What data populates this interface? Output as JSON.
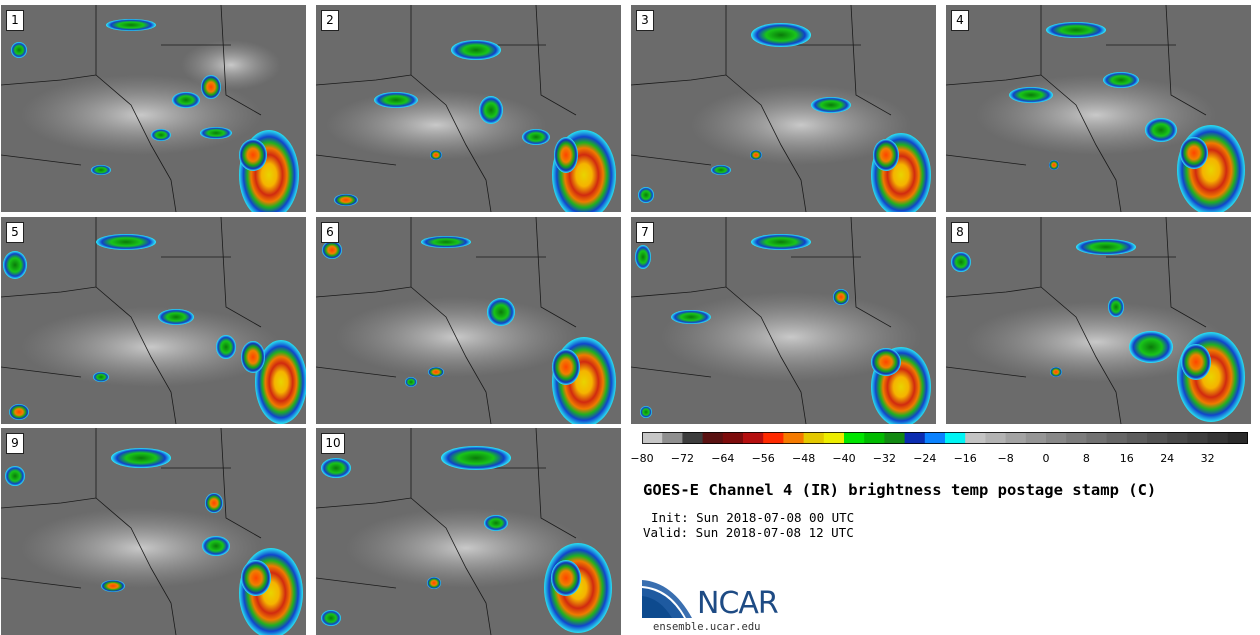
{
  "panels": [
    {
      "label": "1"
    },
    {
      "label": "2"
    },
    {
      "label": "3"
    },
    {
      "label": "4"
    },
    {
      "label": "5"
    },
    {
      "label": "6"
    },
    {
      "label": "7"
    },
    {
      "label": "8"
    },
    {
      "label": "9"
    },
    {
      "label": "10"
    }
  ],
  "colorbar": {
    "colors": [
      "#c6c6c6",
      "#8f8f8f",
      "#3d3d3d",
      "#5a1212",
      "#7d0c0c",
      "#b50f0f",
      "#ff2a00",
      "#f57a00",
      "#e4c800",
      "#eded00",
      "#00e600",
      "#00bb00",
      "#128a12",
      "#0b2db1",
      "#0a82ff",
      "#00f5f5",
      "#c3c3c3",
      "#b3b3b3",
      "#a3a3a3",
      "#959595",
      "#888888",
      "#7c7c7c",
      "#717171",
      "#666666",
      "#5c5c5c",
      "#525252",
      "#484848",
      "#3f3f3f",
      "#353535",
      "#2b2b2b"
    ],
    "ticks": [
      "−80",
      "−72",
      "−64",
      "−56",
      "−48",
      "−40",
      "−32",
      "−24",
      "−16",
      "−8",
      "0",
      "8",
      "16",
      "24",
      "32"
    ]
  },
  "title": "GOES-E Channel 4 (IR) brightness temp postage stamp (C)",
  "init": "Init: Sun 2018-07-08 00 UTC",
  "valid": "Valid: Sun 2018-07-08 12 UTC",
  "logo": {
    "text": "NCAR",
    "url": "ensemble.ucar.edu"
  }
}
